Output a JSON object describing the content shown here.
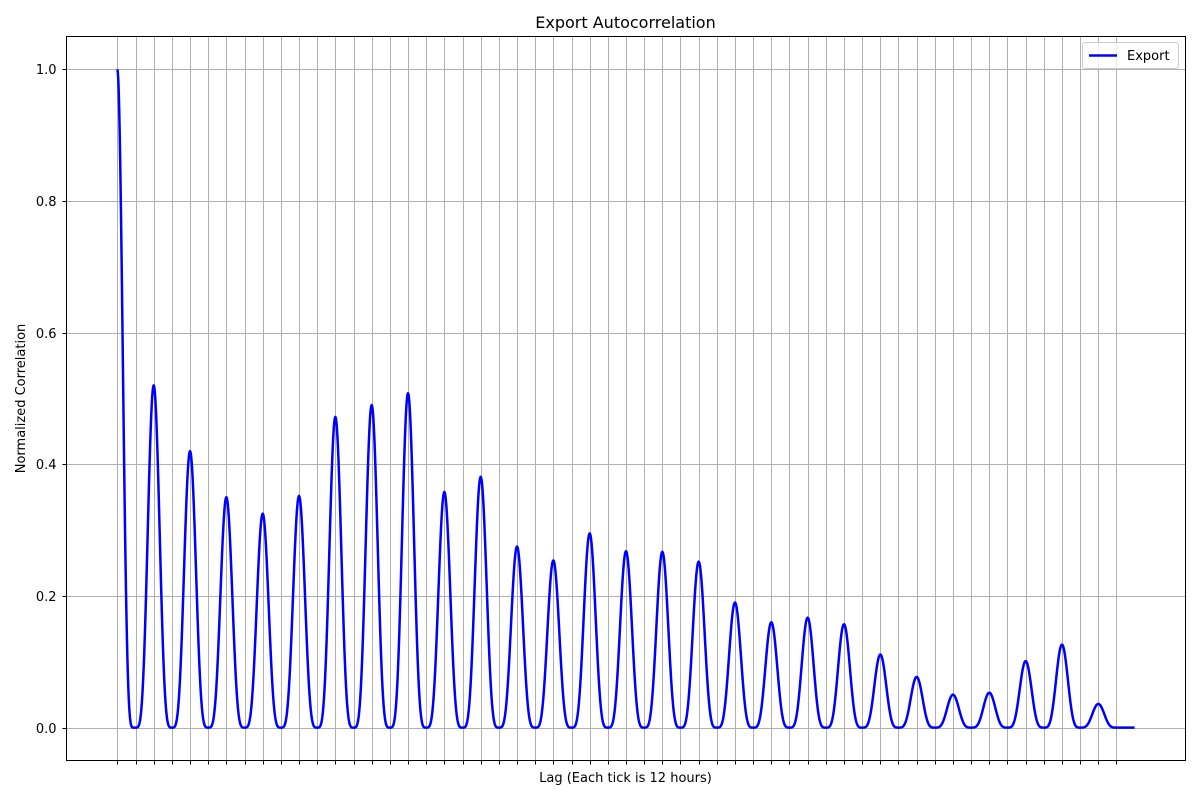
{
  "chart_data": {
    "type": "line",
    "title": "Export Autocorrelation",
    "xlabel": "Lag (Each tick is 12 hours)",
    "ylabel": "Normalized Correlation",
    "xlim": [
      -28,
      588
    ],
    "ylim": [
      -0.05,
      1.05
    ],
    "x_tick_step": 10,
    "x_tick_max": 550,
    "yticks": [
      0.0,
      0.2,
      0.4,
      0.6,
      0.8,
      1.0
    ],
    "ytick_labels": [
      "0.0",
      "0.2",
      "0.4",
      "0.6",
      "0.8",
      "1.0"
    ],
    "grid": true,
    "legend_position": "top-right",
    "series": [
      {
        "name": "Export",
        "color": "#0000ff",
        "initial_value": 1.0,
        "initial_decay_lags": 9,
        "period_lags": 20,
        "peak_half_width_lags": 10,
        "x_end": 560,
        "peaks": [
          {
            "x": 20,
            "y": 0.52
          },
          {
            "x": 40,
            "y": 0.42
          },
          {
            "x": 60,
            "y": 0.35
          },
          {
            "x": 80,
            "y": 0.325
          },
          {
            "x": 100,
            "y": 0.352
          },
          {
            "x": 120,
            "y": 0.472
          },
          {
            "x": 140,
            "y": 0.49
          },
          {
            "x": 160,
            "y": 0.508
          },
          {
            "x": 180,
            "y": 0.358
          },
          {
            "x": 200,
            "y": 0.381
          },
          {
            "x": 220,
            "y": 0.275
          },
          {
            "x": 240,
            "y": 0.254
          },
          {
            "x": 260,
            "y": 0.295
          },
          {
            "x": 280,
            "y": 0.268
          },
          {
            "x": 300,
            "y": 0.267
          },
          {
            "x": 320,
            "y": 0.252
          },
          {
            "x": 340,
            "y": 0.19
          },
          {
            "x": 360,
            "y": 0.16
          },
          {
            "x": 380,
            "y": 0.167
          },
          {
            "x": 400,
            "y": 0.157
          },
          {
            "x": 420,
            "y": 0.111
          },
          {
            "x": 440,
            "y": 0.077
          },
          {
            "x": 460,
            "y": 0.05
          },
          {
            "x": 480,
            "y": 0.053
          },
          {
            "x": 500,
            "y": 0.101
          },
          {
            "x": 520,
            "y": 0.126
          },
          {
            "x": 540,
            "y": 0.036
          }
        ]
      }
    ]
  }
}
